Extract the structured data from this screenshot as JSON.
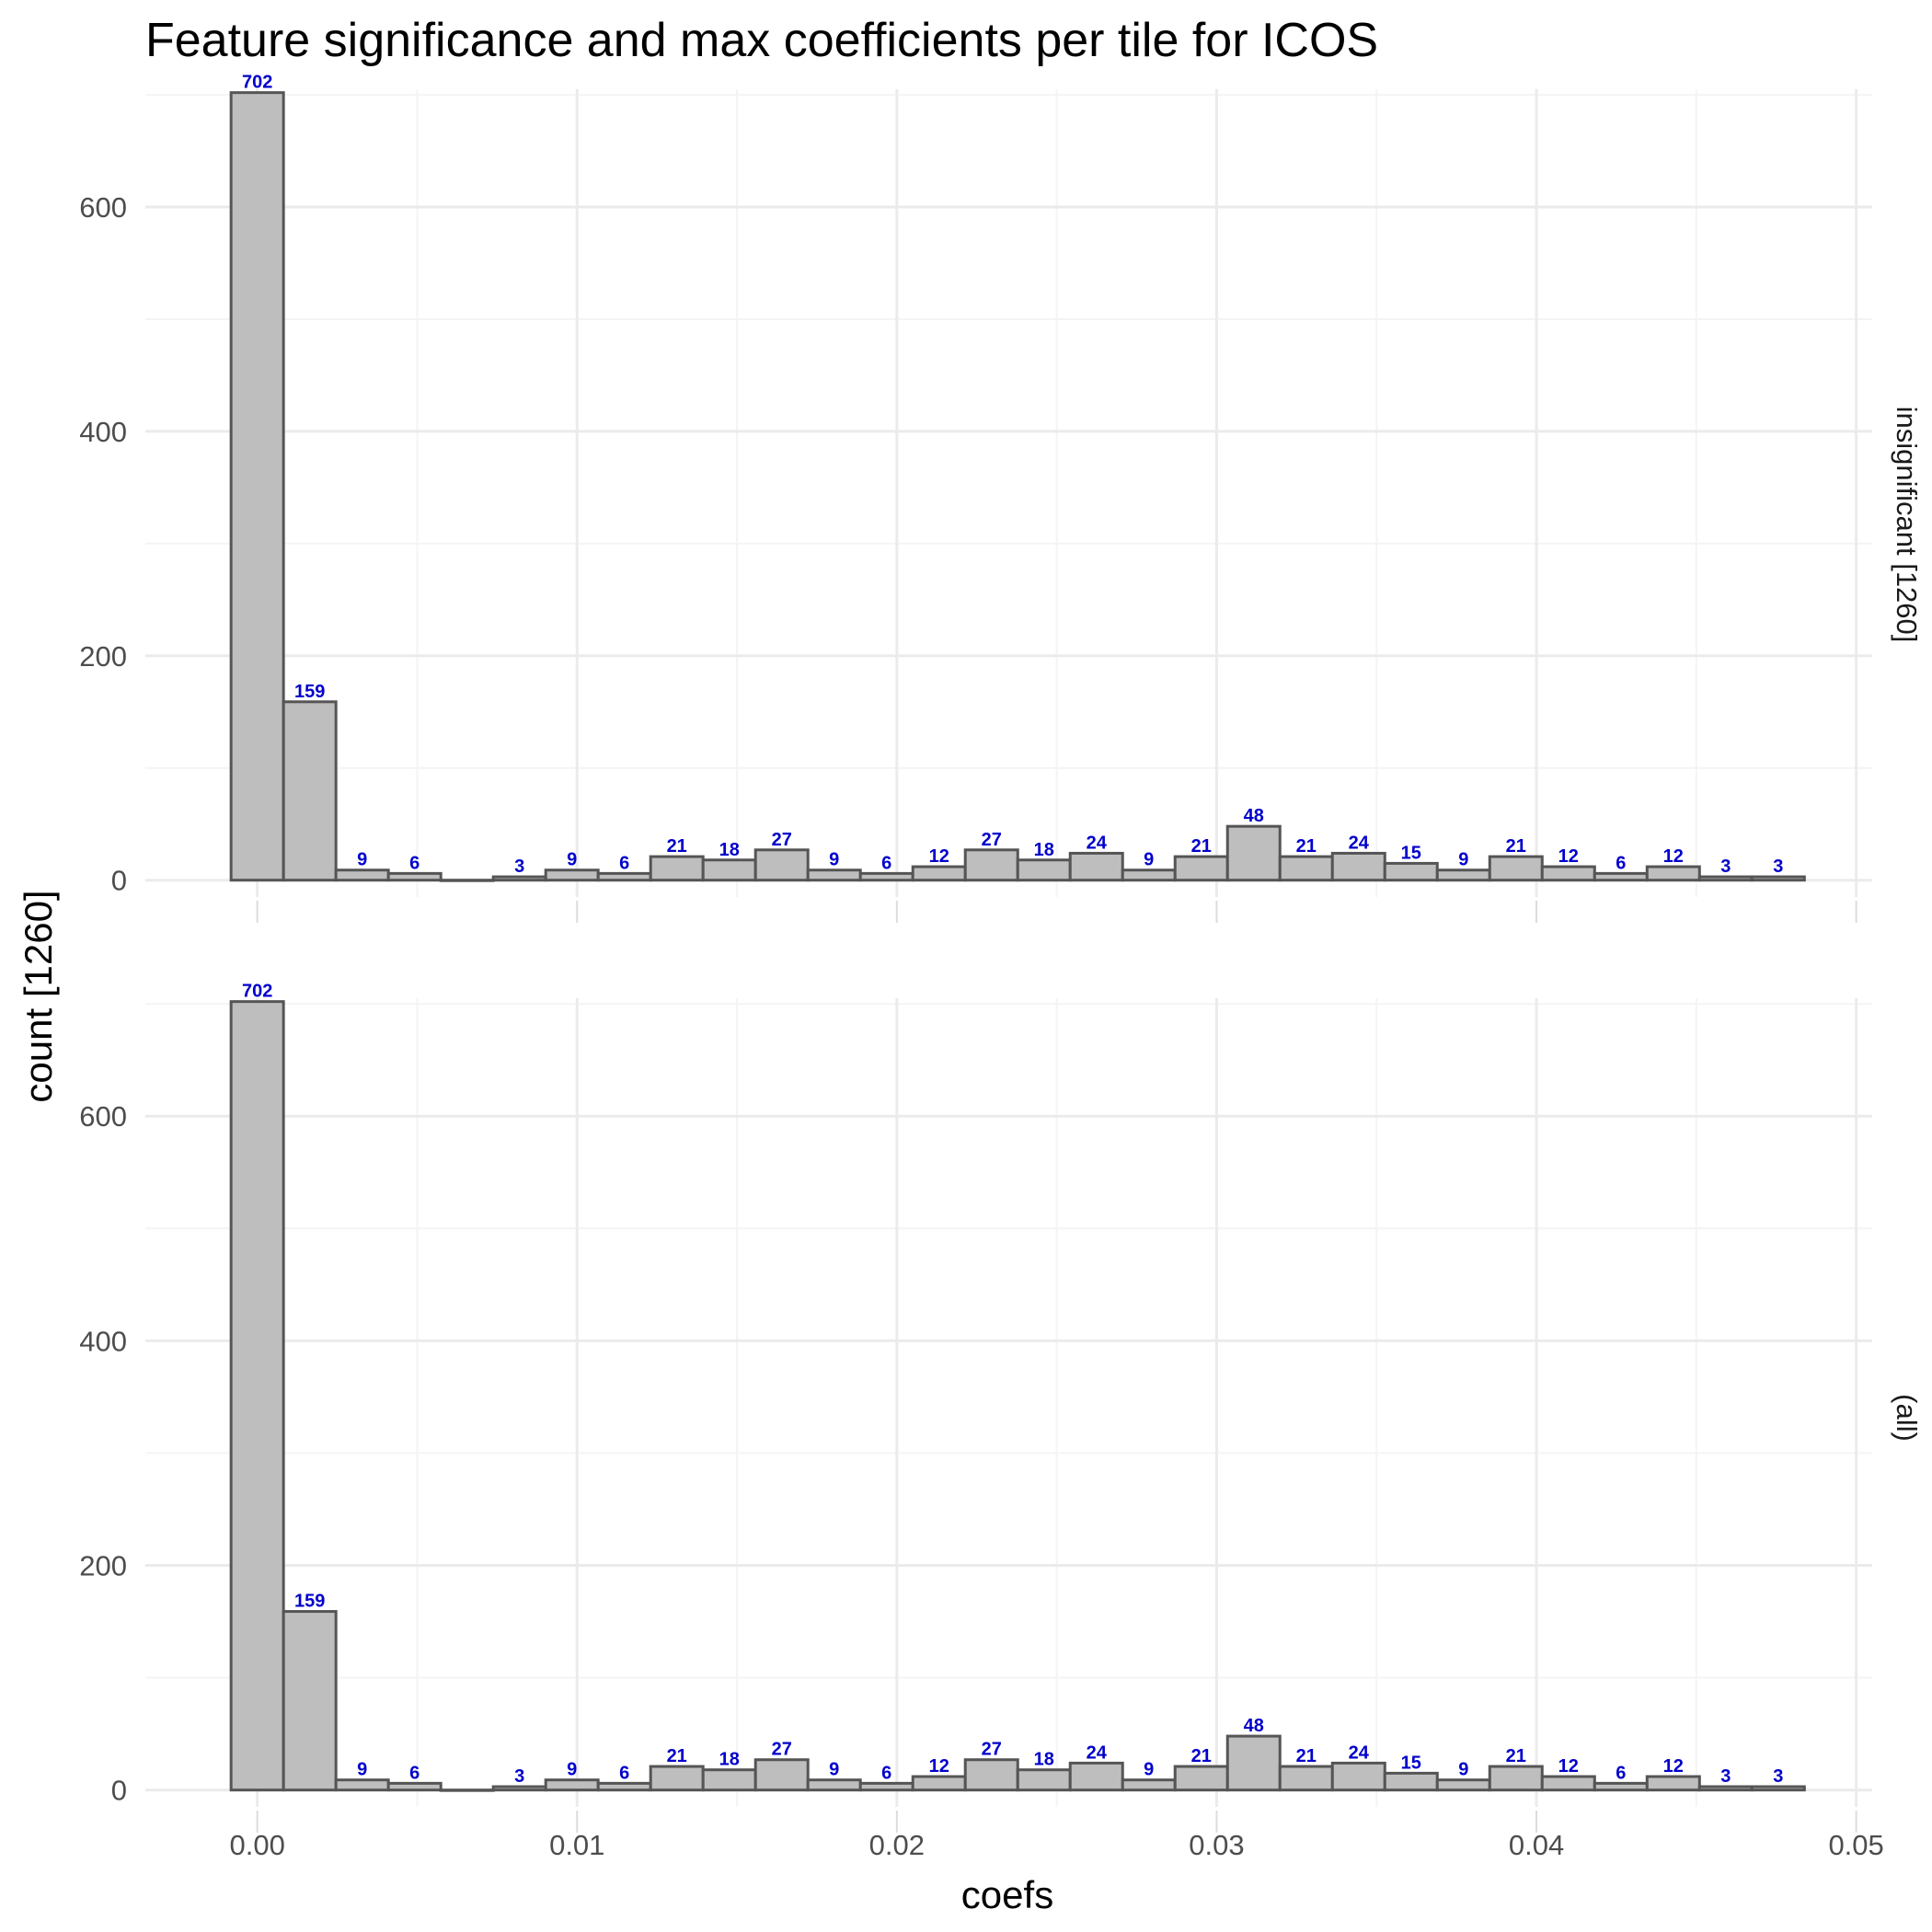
{
  "chart_data": {
    "type": "bar",
    "title": "Feature significance and max coefficients per tile for ICOS",
    "xlabel": "coefs",
    "ylabel": "count [1260]",
    "xlim": [
      -0.0035,
      0.0505
    ],
    "ylim": [
      -15,
      705
    ],
    "xticks": [
      0.0,
      0.01,
      0.02,
      0.03,
      0.04,
      0.05
    ],
    "xtick_labels": [
      "0.00",
      "0.01",
      "0.02",
      "0.03",
      "0.04",
      "0.05"
    ],
    "yticks": [
      0,
      200,
      400,
      600
    ],
    "ytick_labels": [
      "0",
      "200",
      "400",
      "600"
    ],
    "grid": true,
    "bin_width": 0.00164,
    "bin_centers": [
      0.0,
      0.00164,
      0.00328,
      0.00492,
      0.00656,
      0.0082,
      0.00984,
      0.01148,
      0.01312,
      0.01476,
      0.0164,
      0.01804,
      0.01968,
      0.02132,
      0.02296,
      0.0246,
      0.02624,
      0.02788,
      0.02952,
      0.03116,
      0.0328,
      0.03444,
      0.03608,
      0.03772,
      0.03936,
      0.041,
      0.04264,
      0.04428,
      0.04592,
      0.04756
    ],
    "panels": [
      {
        "strip": "insignificant [1260]",
        "values": [
          702,
          159,
          9,
          6,
          0,
          3,
          9,
          6,
          21,
          18,
          27,
          9,
          6,
          12,
          27,
          18,
          24,
          9,
          21,
          48,
          21,
          24,
          15,
          9,
          21,
          12,
          6,
          12,
          3,
          3
        ]
      },
      {
        "strip": "(all)",
        "values": [
          702,
          159,
          9,
          6,
          0,
          3,
          9,
          6,
          21,
          18,
          27,
          9,
          6,
          12,
          27,
          18,
          24,
          9,
          21,
          48,
          21,
          24,
          15,
          9,
          21,
          12,
          6,
          12,
          3,
          3
        ]
      }
    ],
    "colors": {
      "bar_fill": "#bebebe",
      "bar_stroke": "#555555",
      "label": "#0000cc",
      "grid_major": "#ebebeb",
      "grid_minor": "#f4f4f4"
    }
  }
}
